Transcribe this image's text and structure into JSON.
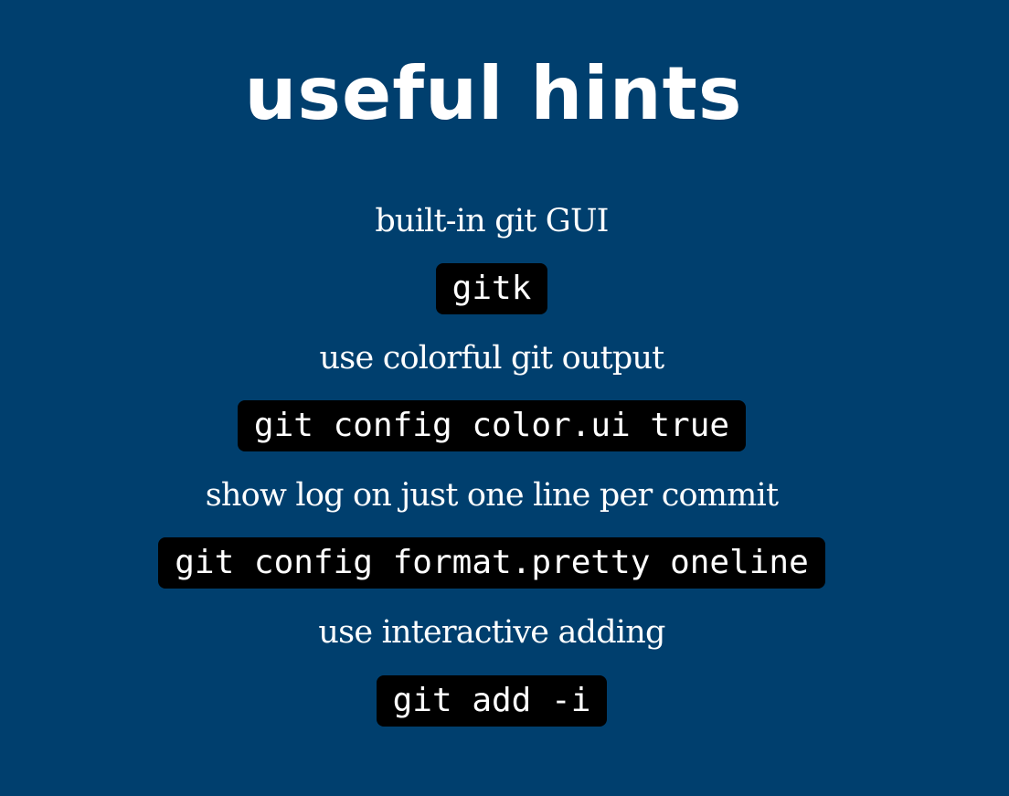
{
  "title": "useful hints",
  "hints": [
    {
      "caption": "built-in git GUI",
      "command": "gitk"
    },
    {
      "caption": "use colorful git output",
      "command": "git config color.ui true"
    },
    {
      "caption": "show log on just one line per commit",
      "command": "git config format.pretty oneline"
    },
    {
      "caption": "use interactive adding",
      "command": "git add -i"
    }
  ],
  "colors": {
    "background": "#003f6e",
    "code_background": "#000000",
    "text": "#ffffff"
  }
}
